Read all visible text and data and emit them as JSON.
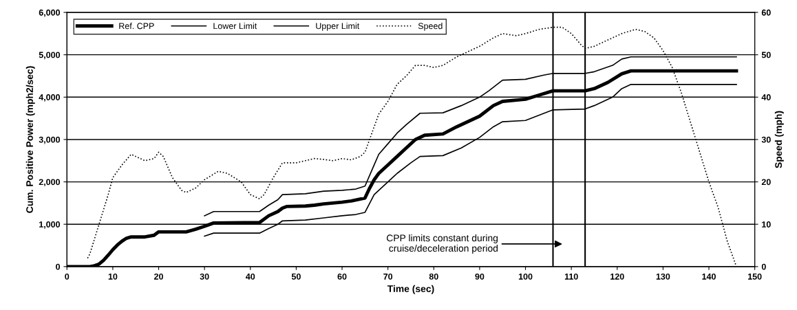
{
  "chart_data": {
    "type": "line",
    "xlabel": "Time (sec)",
    "ylabel": "Cum. Positive Power (mph2/sec)",
    "y2label": "Speed (mph)",
    "xlim": [
      0,
      150
    ],
    "xticks": [
      0,
      10,
      20,
      30,
      40,
      50,
      60,
      70,
      80,
      90,
      100,
      110,
      120,
      130,
      140,
      150
    ],
    "ylim": [
      0,
      6000
    ],
    "yticks": [
      {
        "value": 0,
        "label": "0"
      },
      {
        "value": 1000,
        "label": "1,000"
      },
      {
        "value": 2000,
        "label": "2,000"
      },
      {
        "value": 3000,
        "label": "3,000"
      },
      {
        "value": 4000,
        "label": "4,000"
      },
      {
        "value": 5000,
        "label": "5,000"
      },
      {
        "value": 6000,
        "label": "6,000"
      }
    ],
    "y2lim": [
      0,
      60
    ],
    "y2ticks": [
      0,
      10,
      20,
      30,
      40,
      50,
      60
    ],
    "grid": "y",
    "legend": "top left",
    "series": [
      {
        "name": "Ref. CPP",
        "color": "#000000",
        "line_style": "solid",
        "x": [
          0,
          5,
          6,
          7,
          8,
          9,
          10,
          11,
          12,
          13,
          14,
          17,
          19,
          20,
          26,
          28,
          30,
          32,
          42,
          44,
          46,
          47,
          48,
          52,
          54,
          56,
          60,
          62,
          65,
          66,
          67,
          68,
          70,
          72,
          74,
          76,
          78,
          82,
          85,
          90,
          93,
          95,
          100,
          103,
          106,
          113,
          115,
          118,
          121,
          123,
          146
        ],
        "values": [
          0,
          0,
          20,
          60,
          150,
          270,
          400,
          510,
          600,
          670,
          700,
          700,
          740,
          820,
          820,
          880,
          950,
          1030,
          1040,
          1200,
          1300,
          1380,
          1420,
          1430,
          1450,
          1480,
          1520,
          1550,
          1620,
          1850,
          2050,
          2200,
          2400,
          2600,
          2800,
          3000,
          3100,
          3130,
          3300,
          3550,
          3800,
          3900,
          3950,
          4050,
          4150,
          4150,
          4200,
          4350,
          4550,
          4620,
          4620
        ]
      },
      {
        "name": "Lower Limit",
        "color": "#000000",
        "line_style": "solid",
        "x": [
          30,
          32,
          42,
          44,
          46,
          47,
          52,
          56,
          60,
          63,
          65,
          67,
          70,
          72,
          75,
          77,
          82,
          86,
          90,
          93,
          95,
          100,
          106,
          113,
          115,
          119,
          121,
          123,
          146
        ],
        "values": [
          720,
          790,
          790,
          900,
          1000,
          1080,
          1100,
          1150,
          1200,
          1230,
          1280,
          1700,
          2000,
          2200,
          2450,
          2600,
          2620,
          2800,
          3050,
          3300,
          3420,
          3450,
          3700,
          3720,
          3800,
          4000,
          4200,
          4300,
          4300
        ]
      },
      {
        "name": "Upper Limit",
        "color": "#000000",
        "line_style": "solid",
        "x": [
          30,
          32,
          42,
          44,
          46,
          47,
          52,
          56,
          60,
          63,
          65,
          67,
          68,
          70,
          72,
          74,
          77,
          82,
          86,
          90,
          92,
          95,
          100,
          104,
          106,
          113,
          115,
          119,
          121,
          123,
          146
        ],
        "values": [
          1200,
          1300,
          1300,
          1450,
          1580,
          1700,
          1720,
          1780,
          1800,
          1830,
          1900,
          2400,
          2650,
          2900,
          3150,
          3350,
          3620,
          3630,
          3800,
          4000,
          4150,
          4400,
          4420,
          4520,
          4560,
          4560,
          4600,
          4750,
          4900,
          4950,
          4950
        ]
      },
      {
        "name": "Speed",
        "color": "#000000",
        "line_style": "dotted",
        "axis": "y2",
        "x": [
          4.5,
          5,
          7,
          9,
          10,
          12,
          14,
          17,
          19,
          20,
          21,
          23,
          25,
          26,
          28,
          30,
          33,
          35,
          38,
          40,
          42,
          43,
          45,
          47,
          50,
          52,
          54,
          56,
          58,
          60,
          62,
          64,
          65,
          66,
          67,
          68,
          70,
          72,
          74,
          76,
          78,
          80,
          82,
          85,
          88,
          90,
          93,
          95,
          98,
          100,
          103,
          106,
          108,
          110,
          112,
          113,
          115,
          118,
          121,
          124,
          126,
          128,
          130,
          132,
          134,
          136,
          138,
          140,
          142,
          144,
          146
        ],
        "values": [
          2,
          3,
          10,
          17,
          21,
          24,
          26.5,
          25,
          25.5,
          27,
          26,
          21,
          18,
          17.5,
          18.5,
          20.5,
          22.5,
          22,
          20,
          17,
          16,
          17,
          21,
          24.5,
          24.5,
          25,
          25.5,
          25.3,
          25,
          25.5,
          25.2,
          26,
          27,
          30,
          33,
          36,
          39,
          43,
          45,
          47.5,
          47.5,
          47,
          47.5,
          49.5,
          51,
          52,
          54,
          55,
          54.5,
          55,
          56,
          56.5,
          56.5,
          55,
          52.5,
          51.5,
          52,
          53.5,
          55,
          56,
          55.5,
          54,
          51,
          47,
          41,
          34,
          27,
          20,
          14,
          6,
          0
        ]
      }
    ],
    "ref_lines": [
      {
        "axis": "x",
        "value": 106,
        "color": "#000000",
        "line_style": "solid"
      },
      {
        "axis": "x",
        "value": 113,
        "color": "#000000",
        "line_style": "solid"
      }
    ],
    "annotations": [
      "CPP limits constant during\ncruise/deceleration period"
    ]
  }
}
